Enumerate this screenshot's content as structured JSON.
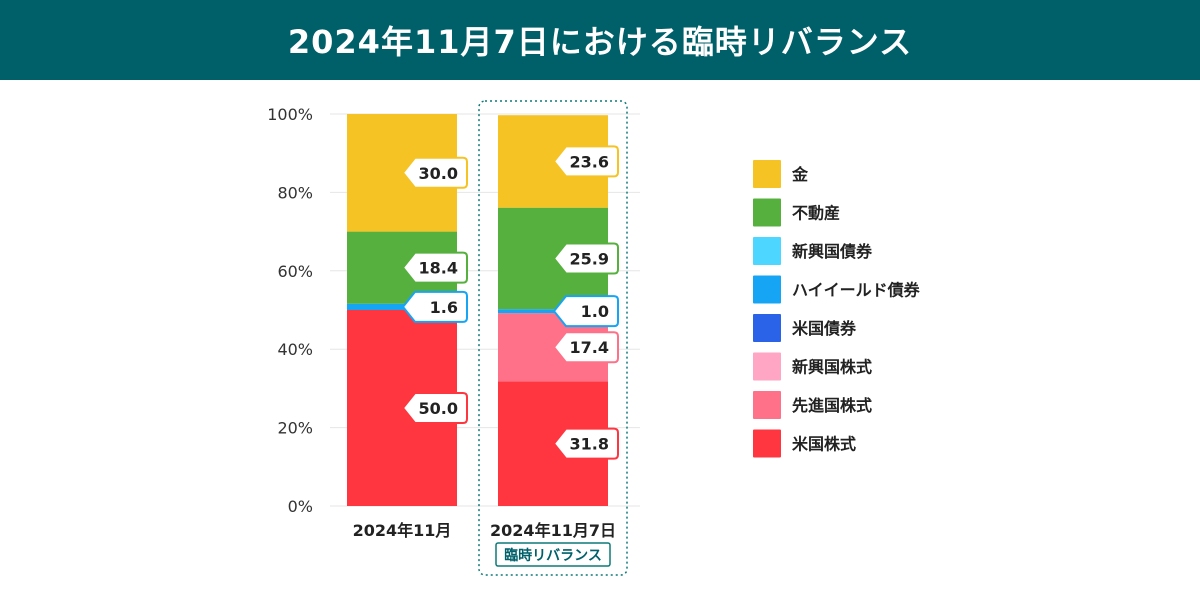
{
  "header": {
    "title": "2024年11月7日における臨時リバランス"
  },
  "colors": {
    "header_bg": "#00606a",
    "highlight_border": "#0b7a78",
    "grid": "#e6e6e6"
  },
  "chart_data": {
    "type": "bar",
    "stacked": true,
    "title": "2024年11月7日における臨時リバランス",
    "categories": [
      "2024年11月",
      "2024年11月7日"
    ],
    "highlight_badge": "臨時リバランス",
    "ylim": [
      0,
      100
    ],
    "yticks": [
      0,
      20,
      40,
      60,
      80,
      100
    ],
    "ytick_labels": [
      "0%",
      "20%",
      "40%",
      "60%",
      "80%",
      "100%"
    ],
    "legend_position": "right",
    "series": [
      {
        "name": "米国株式",
        "color": "#ff3640",
        "values": [
          50.0,
          31.8
        ],
        "labels": [
          "50.0",
          "31.8"
        ]
      },
      {
        "name": "先進国株式",
        "color": "#ff7089",
        "values": [
          0,
          17.4
        ],
        "labels": [
          "",
          "17.4"
        ]
      },
      {
        "name": "新興国株式",
        "color": "#ffa6c4",
        "values": [
          0,
          0
        ],
        "labels": [
          "",
          ""
        ]
      },
      {
        "name": "米国債券",
        "color": "#2a62e8",
        "values": [
          0,
          0
        ],
        "labels": [
          "",
          ""
        ]
      },
      {
        "name": "ハイイールド債券",
        "color": "#16a4f4",
        "values": [
          1.6,
          1.0
        ],
        "labels": [
          "1.6",
          "1.0"
        ]
      },
      {
        "name": "新興国債券",
        "color": "#4dd6ff",
        "values": [
          0,
          0
        ],
        "labels": [
          "",
          ""
        ]
      },
      {
        "name": "不動産",
        "color": "#55b03d",
        "values": [
          18.4,
          25.9
        ],
        "labels": [
          "18.4",
          "25.9"
        ]
      },
      {
        "name": "金",
        "color": "#f6c325",
        "values": [
          30.0,
          23.6
        ],
        "labels": [
          "30.0",
          "23.6"
        ]
      }
    ],
    "legend_order": [
      "金",
      "不動産",
      "新興国債券",
      "ハイイールド債券",
      "米国債券",
      "新興国株式",
      "先進国株式",
      "米国株式"
    ]
  }
}
